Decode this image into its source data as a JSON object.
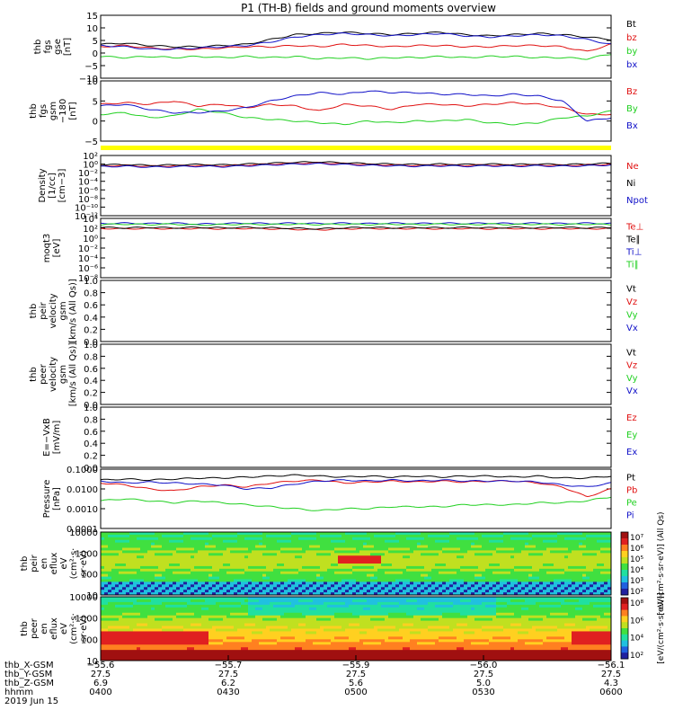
{
  "title": "P1 (TH-B) fields and ground moments overview",
  "colors": {
    "black": "#000000",
    "red": "#e01010",
    "green": "#20d020",
    "blue": "#1010c8",
    "yellow": "#ffff00"
  },
  "chart_data": [
    {
      "type": "line",
      "panel": "fgs-gse",
      "ylabel": [
        "thb",
        "fgs",
        "gse",
        "[nT]"
      ],
      "yticks": [
        "15",
        "10",
        "5",
        "0",
        "−5",
        "−10"
      ],
      "ylim": [
        -10,
        16
      ],
      "series": [
        {
          "name": "Bt",
          "color": "black",
          "values": [
            4,
            4.5,
            3.5,
            3,
            3,
            3.5,
            4,
            6,
            8,
            8.5,
            9,
            8.5,
            8,
            8.5,
            9,
            8,
            7.5,
            8,
            8.5,
            8,
            7,
            6
          ]
        },
        {
          "name": "bz",
          "color": "red",
          "values": [
            3,
            3.5,
            2.5,
            2,
            2,
            2.5,
            3,
            3,
            3.5,
            3,
            4,
            3.5,
            3,
            3.5,
            3.5,
            3,
            3,
            3.5,
            3.5,
            3,
            1,
            4
          ]
        },
        {
          "name": "by",
          "color": "green",
          "values": [
            -1,
            -1.5,
            -1,
            -1.5,
            -1,
            -1.5,
            -1,
            -1.5,
            -1,
            -2,
            -1.5,
            -2,
            -1.5,
            -1.5,
            -1,
            -1.5,
            -1,
            -1,
            -1.5,
            -1.5,
            -2,
            0
          ]
        },
        {
          "name": "bx",
          "color": "blue",
          "values": [
            3.5,
            3,
            2,
            2,
            2.5,
            3,
            3.5,
            5,
            7,
            8,
            8.5,
            8,
            7.5,
            8,
            8.5,
            7.5,
            7,
            7.5,
            8,
            7.5,
            6,
            4
          ]
        }
      ]
    },
    {
      "type": "line",
      "panel": "fgs-gsm",
      "ylabel": [
        "thb",
        "fgs",
        "gsm",
        "−180",
        "[nT]"
      ],
      "yticks": [
        "10",
        "5",
        "0",
        "−5"
      ],
      "ylim": [
        -8,
        10
      ],
      "series": [
        {
          "name": "Bz",
          "color": "red",
          "values": [
            3,
            3.5,
            3,
            4,
            2.5,
            3,
            2,
            3,
            2.5,
            1,
            3,
            2.5,
            1.5,
            3,
            3,
            2.5,
            3,
            3.5,
            3,
            2,
            0,
            0
          ]
        },
        {
          "name": "By",
          "color": "green",
          "values": [
            0,
            0.5,
            -1,
            -0.5,
            1.5,
            0.5,
            -1,
            -1.5,
            -2,
            -2.5,
            -3,
            -2,
            -2.5,
            -2,
            -2,
            -1.5,
            -2.5,
            -3,
            -2.5,
            -1,
            -0.5,
            1
          ]
        },
        {
          "name": "Bx",
          "color": "blue",
          "values": [
            2.5,
            3,
            1.5,
            0.5,
            0.5,
            1,
            2,
            4,
            5.5,
            6.5,
            6,
            7,
            6.5,
            6.5,
            6,
            6,
            5.5,
            6,
            5.5,
            4,
            -2,
            -1
          ]
        }
      ]
    },
    {
      "type": "line",
      "panel": "density",
      "ylabel": [
        "Density",
        "[1/cc]",
        "[cm−3]"
      ],
      "yticks": [
        "10²",
        "10⁰",
        "10⁻²",
        "10⁻⁴",
        "10⁻⁶",
        "10⁻⁸",
        "10⁻¹⁰",
        "10⁻¹²"
      ],
      "ylim": [
        -12,
        2
      ],
      "yscale": "log",
      "series": [
        {
          "name": "Ne",
          "color": "red",
          "values": [
            -0.4,
            -0.3,
            -0.5,
            -0.4,
            -0.3,
            -0.4,
            -0.2,
            0,
            0.2,
            0.3,
            0.1,
            -0.1,
            -0.2,
            -0.3,
            -0.2,
            -0.3,
            -0.2,
            -0.3,
            -0.2,
            -0.3,
            -0.2,
            0
          ]
        },
        {
          "name": "Ni",
          "color": "black",
          "values": [
            -0.2,
            -0.1,
            -0.3,
            -0.2,
            -0.1,
            -0.2,
            0,
            0.2,
            0.4,
            0.5,
            0.3,
            0.1,
            0,
            -0.1,
            0,
            -0.1,
            0,
            -0.1,
            0,
            -0.1,
            0,
            0.2
          ]
        },
        {
          "name": "Npot",
          "color": "blue",
          "values": [
            -0.6,
            -0.5,
            -0.7,
            -0.6,
            -0.5,
            -0.6,
            -0.4,
            -0.2,
            0,
            0.1,
            -0.1,
            -0.3,
            -0.4,
            -0.5,
            -0.4,
            -0.5,
            -0.4,
            -0.5,
            -0.4,
            -0.5,
            -0.4,
            -0.2
          ]
        }
      ]
    },
    {
      "type": "line",
      "panel": "temperature",
      "ylabel": [
        "moqt3",
        "[eV]"
      ],
      "yticks": [
        "10⁴",
        "10²",
        "10⁰",
        "10⁻²",
        "10⁻⁴",
        "10⁻⁶",
        "10⁻⁸"
      ],
      "ylim": [
        -8,
        4.5
      ],
      "series": [
        {
          "name": "Te⊥",
          "color": "red",
          "values": [
            2.4,
            2.3,
            2.4,
            2.3,
            2.4,
            2.3,
            2.4,
            2.3,
            2.2,
            2.1,
            2.3,
            2.4,
            2.3,
            2.4,
            2.3,
            2.4,
            2.3,
            2.4,
            2.3,
            2.4,
            2.3,
            2.4
          ]
        },
        {
          "name": "Te∥",
          "color": "black",
          "values": [
            2.6,
            2.5,
            2.6,
            2.5,
            2.6,
            2.5,
            2.6,
            2.5,
            2.4,
            2.3,
            2.5,
            2.6,
            2.5,
            2.6,
            2.5,
            2.6,
            2.5,
            2.6,
            2.5,
            2.6,
            2.5,
            2.6
          ]
        },
        {
          "name": "Ti⊥",
          "color": "blue",
          "values": [
            3.4,
            3.5,
            3.4,
            3.5,
            3.3,
            3.4,
            3.5,
            3.4,
            3.5,
            3.4,
            3.5,
            3.4,
            3.5,
            3.4,
            3.5,
            3.4,
            3.5,
            3.4,
            3.5,
            3.4,
            3.5,
            3.4
          ]
        },
        {
          "name": "Ti∥",
          "color": "green",
          "values": [
            3.2,
            3.3,
            3.2,
            3.3,
            3.1,
            3.2,
            3.3,
            3.2,
            3.3,
            3.2,
            3.3,
            3.2,
            3.3,
            3.2,
            3.3,
            3.2,
            3.3,
            3.2,
            3.3,
            3.2,
            3.3,
            3.2
          ]
        }
      ]
    },
    {
      "type": "line",
      "panel": "peir-velocity",
      "ylabel": [
        "thb",
        "peir",
        "velocity",
        "gsm",
        "[km/s (All Qs)]"
      ],
      "yticks": [
        "1.0",
        "0.8",
        "0.6",
        "0.4",
        "0.2",
        "0.0"
      ],
      "ylim": [
        0,
        1
      ],
      "series": [
        {
          "name": "Vt",
          "color": "black",
          "values": []
        },
        {
          "name": "Vz",
          "color": "red",
          "values": []
        },
        {
          "name": "Vy",
          "color": "green",
          "values": []
        },
        {
          "name": "Vx",
          "color": "blue",
          "values": []
        }
      ]
    },
    {
      "type": "line",
      "panel": "peer-velocity",
      "ylabel": [
        "thb",
        "peer",
        "velocity",
        "gsm",
        "[km/s (All Qs)]"
      ],
      "yticks": [
        "1.0",
        "0.8",
        "0.6",
        "0.4",
        "0.2",
        "0.0"
      ],
      "ylim": [
        0,
        1
      ],
      "series": [
        {
          "name": "Vt",
          "color": "black",
          "values": []
        },
        {
          "name": "Vz",
          "color": "red",
          "values": []
        },
        {
          "name": "Vy",
          "color": "green",
          "values": []
        },
        {
          "name": "Vx",
          "color": "blue",
          "values": []
        }
      ]
    },
    {
      "type": "line",
      "panel": "efield",
      "ylabel": [
        "E=−VxB",
        "[mV/m]"
      ],
      "yticks": [
        "1.0",
        "0.8",
        "0.6",
        "0.4",
        "0.2",
        "0.0"
      ],
      "ylim": [
        0,
        1
      ],
      "series": [
        {
          "name": "Ez",
          "color": "red",
          "values": []
        },
        {
          "name": "Ey",
          "color": "green",
          "values": []
        },
        {
          "name": "Ex",
          "color": "blue",
          "values": []
        }
      ]
    },
    {
      "type": "line",
      "panel": "pressure",
      "ylabel": [
        "Pressure",
        "[nPa]"
      ],
      "yticks": [
        "0.1000",
        "0.0100",
        "0.0010",
        "0.0001"
      ],
      "ylim": [
        -4,
        -1
      ],
      "yscale": "log",
      "series": [
        {
          "name": "Pt",
          "color": "black",
          "values": [
            -1.55,
            -1.5,
            -1.55,
            -1.5,
            -1.45,
            -1.45,
            -1.4,
            -1.35,
            -1.3,
            -1.35,
            -1.4,
            -1.35,
            -1.4,
            -1.35,
            -1.4,
            -1.35,
            -1.35,
            -1.4,
            -1.35,
            -1.45,
            -1.45,
            -1.35
          ]
        },
        {
          "name": "Pb",
          "color": "red",
          "values": [
            -1.7,
            -1.8,
            -2.0,
            -2.1,
            -1.9,
            -1.8,
            -1.9,
            -1.7,
            -1.6,
            -1.55,
            -1.7,
            -1.65,
            -1.6,
            -1.65,
            -1.6,
            -1.65,
            -1.6,
            -1.6,
            -1.7,
            -1.9,
            -2.4,
            -2.0
          ]
        },
        {
          "name": "Pe",
          "color": "green",
          "values": [
            -2.6,
            -2.5,
            -2.6,
            -2.7,
            -2.6,
            -2.7,
            -2.8,
            -2.9,
            -3.0,
            -3.1,
            -3.0,
            -3.0,
            -2.9,
            -2.9,
            -2.9,
            -2.8,
            -2.8,
            -2.8,
            -2.7,
            -2.7,
            -2.6,
            -2.4
          ]
        },
        {
          "name": "Pi",
          "color": "blue",
          "values": [
            -1.6,
            -1.7,
            -1.65,
            -1.7,
            -1.75,
            -1.8,
            -2.0,
            -1.95,
            -1.75,
            -1.6,
            -1.55,
            -1.6,
            -1.55,
            -1.6,
            -1.55,
            -1.6,
            -1.6,
            -1.6,
            -1.65,
            -1.8,
            -1.9,
            -1.7
          ]
        }
      ]
    },
    {
      "type": "heatmap",
      "panel": "peir-spectrogram",
      "ylabel": [
        "thb",
        "peir",
        "en",
        "eflux",
        "eV",
        "(cm²·s·",
        "sr·eV)"
      ],
      "yticks": [
        "10000",
        "1000",
        "100",
        "10"
      ],
      "ylim": [
        5,
        30000
      ],
      "yscale": "log",
      "colorbar_label": "[eV/(cm²·s·sr·eV)] (All Qs)",
      "colorbar_ticks": [
        "10⁷",
        "10⁶",
        "10⁵",
        "10⁴",
        "10³",
        "10²"
      ]
    },
    {
      "type": "heatmap",
      "panel": "peer-spectrogram",
      "ylabel": [
        "thb",
        "peer",
        "en",
        "eflux",
        "eV",
        "(cm²·s·",
        "sr·eV)"
      ],
      "yticks": [
        "10000",
        "1000",
        "100",
        "10"
      ],
      "ylim": [
        5,
        30000
      ],
      "yscale": "log",
      "colorbar_label": "[eV/(cm²·s·sr·eV)]",
      "colorbar_ticks": [
        "10⁸",
        "10⁶",
        "10⁴",
        "10²"
      ]
    }
  ],
  "xaxis": {
    "rows": [
      {
        "label": "thb_X-GSM",
        "values": [
          "−55.6",
          "−55.7",
          "−55.9",
          "−56.0",
          "−56.1"
        ]
      },
      {
        "label": "thb_Y-GSM",
        "values": [
          "27.5",
          "27.5",
          "27.5",
          "27.5",
          "27.5"
        ]
      },
      {
        "label": "thb_Z-GSM",
        "values": [
          "6.9",
          "6.2",
          "5.6",
          "5.0",
          "4.3"
        ]
      },
      {
        "label": "hhmm",
        "values": [
          "0400",
          "0430",
          "0500",
          "0530",
          "0600"
        ]
      }
    ],
    "date": "2019 Jun 15"
  }
}
